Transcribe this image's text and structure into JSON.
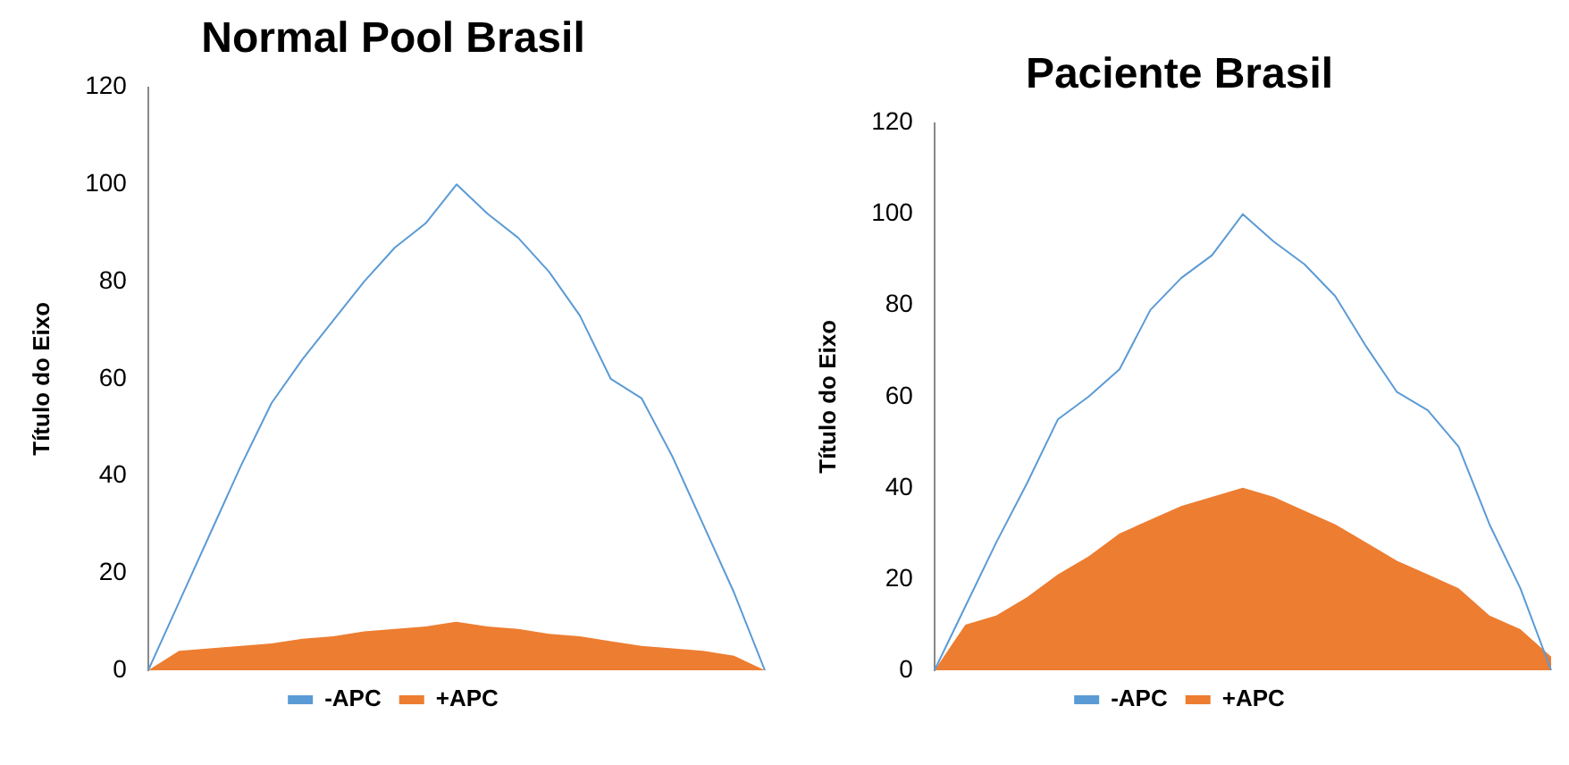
{
  "chart_data": [
    {
      "type": "line",
      "title": "Normal Pool Brasil",
      "ylabel": "Título do Eixo",
      "categories": [
        null,
        null,
        null,
        null,
        null,
        null,
        null,
        null,
        null,
        null,
        null,
        null,
        null,
        null,
        null,
        null,
        null,
        null,
        null,
        null,
        null
      ],
      "ylim": [
        0,
        120
      ],
      "yticks": [
        0,
        20,
        40,
        60,
        80,
        100,
        120
      ],
      "grid": false,
      "legend": "bottom",
      "tick_labels": "y",
      "series": [
        {
          "name": "-APC",
          "type": "line",
          "color": "#5b9bd5",
          "values": [
            0,
            14,
            28,
            42,
            55,
            64,
            72,
            80,
            87,
            92,
            100,
            94,
            89,
            82,
            73,
            60,
            56,
            44,
            30,
            16,
            0
          ]
        },
        {
          "name": "+APC",
          "type": "area",
          "color": "#ed7d31",
          "values": [
            0,
            4,
            4.5,
            5,
            5.5,
            6.5,
            7,
            8,
            8.5,
            9,
            10,
            9,
            8.5,
            7.5,
            7,
            6,
            5,
            4.5,
            4,
            3,
            0
          ]
        }
      ]
    },
    {
      "type": "line",
      "title": "Paciente Brasil",
      "ylabel": "Título do Eixo",
      "categories": [
        null,
        null,
        null,
        null,
        null,
        null,
        null,
        null,
        null,
        null,
        null,
        null,
        null,
        null,
        null,
        null,
        null,
        null,
        null,
        null,
        null
      ],
      "ylim": [
        0,
        120
      ],
      "yticks": [
        0,
        20,
        40,
        60,
        80,
        100,
        120
      ],
      "grid": false,
      "legend": "bottom",
      "tick_labels": "y",
      "series": [
        {
          "name": "-APC",
          "type": "line",
          "color": "#5b9bd5",
          "values": [
            0,
            14,
            28,
            41,
            55,
            60,
            66,
            79,
            86,
            91,
            100,
            94,
            89,
            82,
            71,
            61,
            57,
            49,
            32,
            18,
            0
          ]
        },
        {
          "name": "+APC",
          "type": "area",
          "color": "#ed7d31",
          "values": [
            0,
            10,
            12,
            16,
            21,
            25,
            30,
            33,
            36,
            38,
            40,
            38,
            35,
            32,
            28,
            24,
            21,
            18,
            12,
            9,
            3
          ]
        }
      ]
    }
  ]
}
